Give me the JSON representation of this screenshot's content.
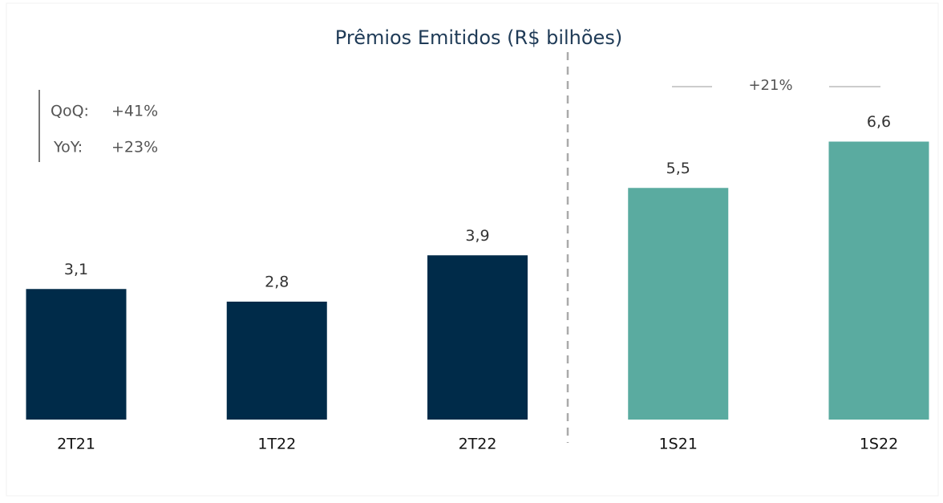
{
  "chart_data": {
    "type": "bar",
    "title": "Prêmios Emitidos (R$ bilhões)",
    "categories": [
      "2T21",
      "1T22",
      "2T22",
      "1S21",
      "1S22"
    ],
    "values": [
      3.1,
      2.8,
      3.9,
      5.5,
      6.6
    ],
    "value_labels": [
      "3,1",
      "2,8",
      "3,9",
      "5,5",
      "6,6"
    ],
    "colors": [
      "#002b49",
      "#002b49",
      "#002b49",
      "#5aaba0",
      "#5aaba0"
    ],
    "annotations": {
      "qoq_label": "QoQ:",
      "qoq_value": "+41%",
      "yoy_label": "YoY:",
      "yoy_value": "+23%",
      "growth": "+21%"
    }
  }
}
